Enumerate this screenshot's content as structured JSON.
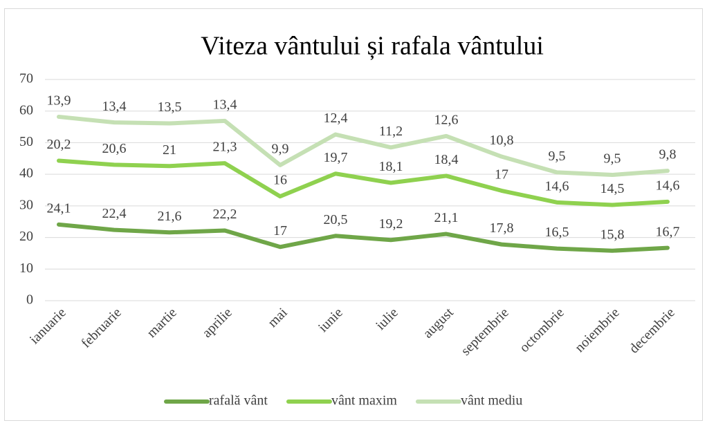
{
  "chart_data": {
    "type": "line",
    "stacked": true,
    "title": "Viteza vântului și rafala vântului",
    "categories": [
      "ianuarie",
      "februarie",
      "martie",
      "aprilie",
      "mai",
      "iunie",
      "iulie",
      "august",
      "septembrie",
      "octombrie",
      "noiembrie",
      "decembrie"
    ],
    "series": [
      {
        "name": "rafală vânt",
        "color": "#6fa648",
        "values": [
          24.1,
          22.4,
          21.6,
          22.2,
          17,
          20.5,
          19.2,
          21.1,
          17.8,
          16.5,
          15.8,
          16.7
        ],
        "value_labels": [
          "24,1",
          "22,4",
          "21,6",
          "22,2",
          "17",
          "20,5",
          "19,2",
          "21,1",
          "17,8",
          "16,5",
          "15,8",
          "16,7"
        ]
      },
      {
        "name": "vânt maxim",
        "color": "#8fd14f",
        "values": [
          20.2,
          20.6,
          21,
          21.3,
          16,
          19.7,
          18.1,
          18.4,
          17,
          14.6,
          14.5,
          14.6
        ],
        "value_labels": [
          "20,2",
          "20,6",
          "21",
          "21,3",
          "16",
          "19,7",
          "18,1",
          "18,4",
          "17",
          "14,6",
          "14,5",
          "14,6"
        ]
      },
      {
        "name": "vânt mediu",
        "color": "#c5e0b4",
        "values": [
          13.9,
          13.4,
          13.5,
          13.4,
          9.9,
          12.4,
          11.2,
          12.6,
          10.8,
          9.5,
          9.5,
          9.8
        ],
        "value_labels": [
          "13,9",
          "13,4",
          "13,5",
          "13,4",
          "9,9",
          "12,4",
          "11,2",
          "12,6",
          "10,8",
          "9,5",
          "9,5",
          "9,8"
        ]
      }
    ],
    "ylim": [
      0,
      70
    ],
    "yticks": [
      0,
      10,
      20,
      30,
      40,
      50,
      60,
      70
    ],
    "grid": true,
    "legend": "bottom"
  }
}
